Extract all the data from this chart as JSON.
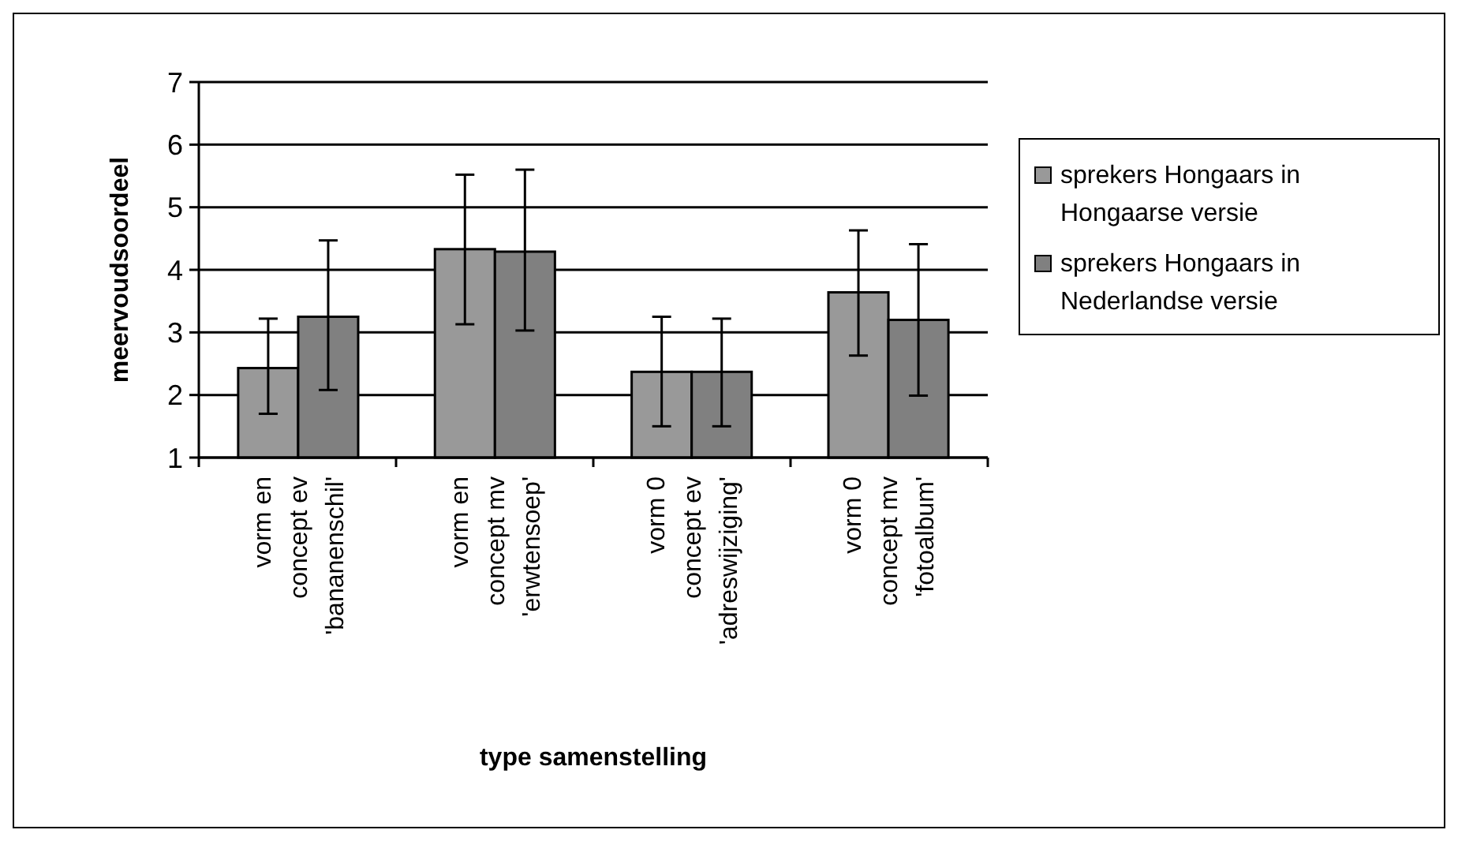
{
  "chart_data": {
    "type": "bar",
    "xlabel": "type samenstelling",
    "ylabel": "meervoudsoordeel",
    "categories": [
      "vorm en\nconcept ev\n'bananenschil'",
      "vorm en\nconcept mv\n'erwtensoep'",
      "vorm 0\nconcept ev\n'adreswijziging'",
      "vorm 0\nconcept mv\n'fotoalbum'"
    ],
    "series": [
      {
        "name": "sprekers Hongaars in Hongaarse versie",
        "color": "#999999",
        "values": [
          2.43,
          4.33,
          2.37,
          3.64
        ],
        "errors": [
          [
            1.7,
            3.22
          ],
          [
            3.13,
            5.52
          ],
          [
            1.5,
            3.25
          ],
          [
            2.63,
            4.63
          ]
        ]
      },
      {
        "name": "sprekers Hongaars in Nederlandse versie",
        "color": "#808080",
        "values": [
          3.25,
          4.29,
          2.37,
          3.2
        ],
        "errors": [
          [
            2.08,
            4.47
          ],
          [
            3.03,
            5.6
          ],
          [
            1.5,
            3.22
          ],
          [
            1.99,
            4.41
          ]
        ]
      }
    ],
    "ylim": [
      1,
      7
    ],
    "yticks": [
      1,
      2,
      3,
      4,
      5,
      6,
      7
    ],
    "grid": "y",
    "legend": "right"
  }
}
